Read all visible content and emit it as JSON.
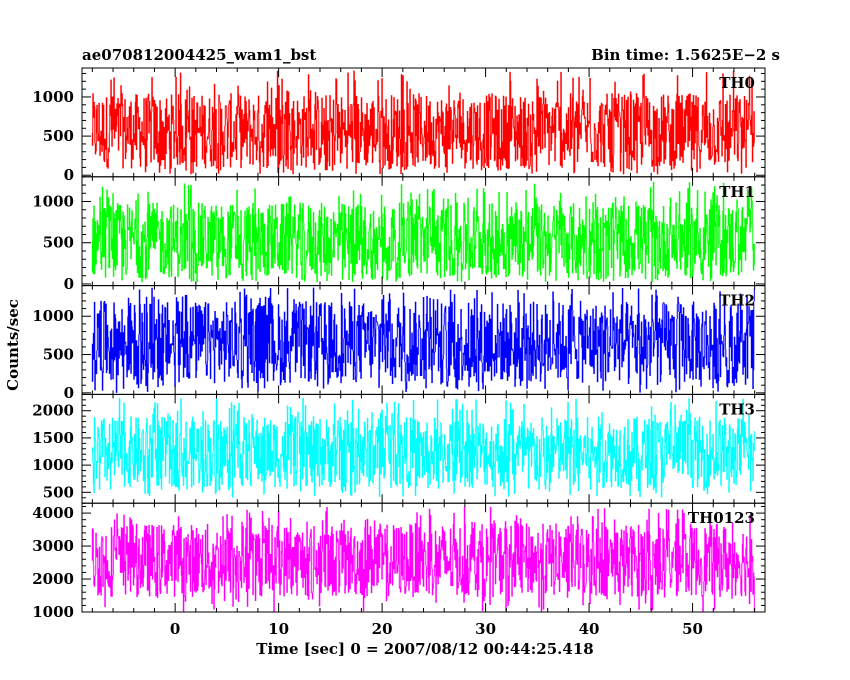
{
  "header": {
    "title": "ae070812004425_wam1_bst",
    "bin_time": "Bin time: 1.5625E−2 s"
  },
  "axes": {
    "xlabel": "Time [sec] 0 = 2007/08/12 00:44:25.418",
    "ylabel": "Counts/sec"
  },
  "chart_data": {
    "type": "line",
    "title": "ae070812004425_wam1_bst",
    "subtitle": "Bin time: 1.5625E−2 s",
    "xlabel": "Time [sec] 0 = 2007/08/12 00:44:25.418",
    "ylabel": "Counts/sec",
    "xlim": [
      -9,
      57
    ],
    "x_ticks": [
      0,
      10,
      20,
      30,
      40,
      50
    ],
    "x_range_data": [
      -8,
      56
    ],
    "bin_time_s": 0.015625,
    "grid": false,
    "panels": [
      {
        "name": "TH0",
        "color": "#ff0000",
        "ylim": [
          -20,
          1370
        ],
        "y_ticks": [
          0,
          500,
          1000
        ],
        "approx_envelope": {
          "mean": 540,
          "low": 80,
          "high": 1050,
          "spike_max": 1360,
          "spike_min": 10
        }
      },
      {
        "name": "TH1",
        "color": "#00ff00",
        "ylim": [
          -20,
          1300
        ],
        "y_ticks": [
          0,
          500,
          1000
        ],
        "approx_envelope": {
          "mean": 520,
          "low": 70,
          "high": 990,
          "spike_max": 1240,
          "spike_min": 20
        }
      },
      {
        "name": "TH2",
        "color": "#0000ff",
        "ylim": [
          -20,
          1400
        ],
        "y_ticks": [
          0,
          500,
          1000
        ],
        "approx_envelope": {
          "mean": 640,
          "low": 120,
          "high": 1200,
          "spike_max": 1380,
          "spike_min": 0
        }
      },
      {
        "name": "TH3",
        "color": "#00ffff",
        "ylim": [
          300,
          2300
        ],
        "y_ticks": [
          500,
          1000,
          1500,
          2000
        ],
        "approx_envelope": {
          "mean": 1240,
          "low": 580,
          "high": 1900,
          "spike_max": 2240,
          "spike_min": 400
        }
      },
      {
        "name": "TH0123",
        "color": "#ff00ff",
        "ylim": [
          1000,
          4300
        ],
        "y_ticks": [
          1000,
          2000,
          3000,
          4000
        ],
        "approx_envelope": {
          "mean": 2560,
          "low": 1450,
          "high": 3700,
          "spike_max": 4200,
          "spike_min": 1000
        }
      }
    ]
  }
}
